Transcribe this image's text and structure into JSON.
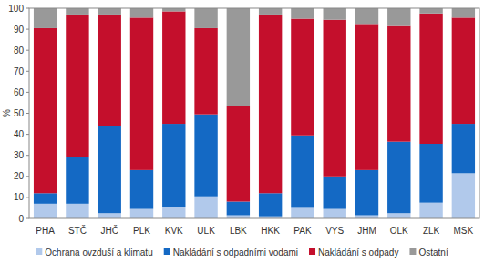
{
  "chart_data": {
    "type": "bar",
    "stacked": true,
    "y_label": "%",
    "categories": [
      "PHA",
      "STČ",
      "JHČ",
      "PLK",
      "KVK",
      "ULK",
      "LBK",
      "HKK",
      "PAK",
      "VYS",
      "JHM",
      "OLK",
      "ZLK",
      "MSK"
    ],
    "series": [
      {
        "name": "Ochrana ovzduší a klimatu",
        "color": "#b1c9eb",
        "values": [
          7,
          7,
          2.5,
          4.5,
          5.5,
          10.5,
          1.5,
          1,
          5,
          4.5,
          1.5,
          2.5,
          7.5,
          21.5
        ]
      },
      {
        "name": "Nakládání s odpadními vodami",
        "color": "#1469c4",
        "values": [
          5,
          22,
          41.5,
          18.5,
          39.5,
          39,
          6.5,
          11,
          34.5,
          15.5,
          21.5,
          34,
          28,
          23.5
        ]
      },
      {
        "name": "Nakládání s odpady",
        "color": "#c40f2c",
        "values": [
          78.5,
          68,
          53,
          72.5,
          53.5,
          41,
          45.5,
          85,
          55.5,
          74.5,
          69.5,
          55,
          62,
          50.5
        ]
      },
      {
        "name": "Ostatní",
        "color": "#999999",
        "values": [
          9.5,
          3,
          3,
          4.5,
          1.5,
          9.5,
          46.5,
          3,
          5,
          5.5,
          7.5,
          8.5,
          2.5,
          4.5
        ]
      }
    ],
    "ylim": [
      0,
      100
    ],
    "yticks": [
      0,
      10,
      20,
      30,
      40,
      50,
      60,
      70,
      80,
      90,
      100
    ],
    "grid": false,
    "legend": "bottom"
  }
}
